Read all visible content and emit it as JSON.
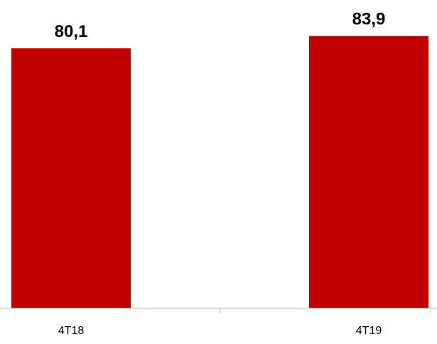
{
  "chart_data": {
    "type": "bar",
    "categories": [
      "4T18",
      "4T19"
    ],
    "values": [
      80.1,
      83.9
    ],
    "data_labels": [
      "80,1",
      "83,9"
    ],
    "colors": {
      "bar": "#c00000",
      "axis": "#b0b0b0",
      "label": "#000000"
    },
    "grid": false,
    "legend": "none"
  }
}
